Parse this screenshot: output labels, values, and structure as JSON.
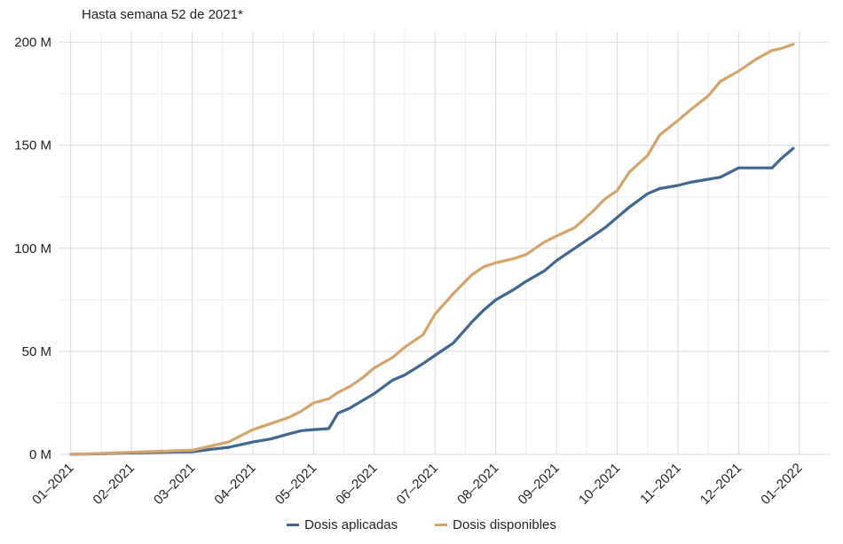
{
  "chart_data": {
    "type": "line",
    "title": "",
    "subtitle": "Hasta semana 52 de 2021*",
    "xlabel": "",
    "ylabel": "",
    "x_ticks": [
      "01–2021",
      "02–2021",
      "03–2021",
      "04–2021",
      "05–2021",
      "06–2021",
      "07–2021",
      "08–2021",
      "09–2021",
      "10–2021",
      "11–2021",
      "12–2021",
      "01–2022"
    ],
    "y_ticks": [
      {
        "value": 0,
        "label": "0 M"
      },
      {
        "value": 50,
        "label": "50 M"
      },
      {
        "value": 100,
        "label": "100 M"
      },
      {
        "value": 150,
        "label": "150 M"
      },
      {
        "value": 200,
        "label": "200 M"
      }
    ],
    "ylim": [
      0,
      205
    ],
    "xlim": [
      -0.2,
      12.5
    ],
    "grid": true,
    "legend_position": "bottom",
    "series": [
      {
        "name": "Dosis aplicadas",
        "color": "#3f6791",
        "x": [
          0,
          0.5,
          1,
          1.5,
          2,
          2.3,
          2.6,
          3,
          3.3,
          3.6,
          3.8,
          4.0,
          4.25,
          4.4,
          4.6,
          4.8,
          5.0,
          5.3,
          5.5,
          5.8,
          6.0,
          6.3,
          6.6,
          6.8,
          7.0,
          7.3,
          7.5,
          7.8,
          8.0,
          8.3,
          8.6,
          8.8,
          9.0,
          9.2,
          9.5,
          9.7,
          10.0,
          10.2,
          10.5,
          10.7,
          11.0,
          11.3,
          11.55,
          11.7,
          11.9
        ],
        "y": [
          0,
          0.3,
          0.7,
          1.0,
          1.2,
          2.4,
          3.4,
          6,
          7.5,
          10,
          11.5,
          12,
          12.5,
          20,
          22.5,
          26,
          29.5,
          36,
          38.5,
          44,
          48,
          54,
          64,
          70,
          75,
          80,
          84,
          89,
          94,
          100,
          106,
          110,
          115,
          120,
          126.5,
          129,
          130.5,
          132,
          133.5,
          134.5,
          139,
          139,
          139,
          143.5,
          148.5
        ]
      },
      {
        "name": "Dosis disponibles",
        "color": "#d4a46a",
        "x": [
          0,
          0.5,
          1,
          1.5,
          2,
          2.3,
          2.6,
          3,
          3.3,
          3.6,
          3.8,
          4.0,
          4.25,
          4.4,
          4.6,
          4.8,
          5.0,
          5.3,
          5.5,
          5.8,
          6.0,
          6.3,
          6.6,
          6.8,
          7.0,
          7.3,
          7.5,
          7.8,
          8.0,
          8.3,
          8.6,
          8.8,
          9.0,
          9.2,
          9.5,
          9.7,
          10.0,
          10.2,
          10.5,
          10.7,
          11.0,
          11.3,
          11.55,
          11.7,
          11.9
        ],
        "y": [
          0,
          0.5,
          1,
          1.5,
          2,
          4,
          6,
          12,
          15,
          18,
          21,
          25,
          27,
          30,
          33,
          37,
          42,
          47,
          52,
          58,
          68,
          78,
          87,
          91,
          93,
          95,
          97,
          103,
          106,
          110,
          118,
          124,
          128,
          137,
          145,
          155,
          162,
          167,
          174,
          181,
          186,
          192,
          196,
          197,
          199
        ]
      }
    ]
  }
}
